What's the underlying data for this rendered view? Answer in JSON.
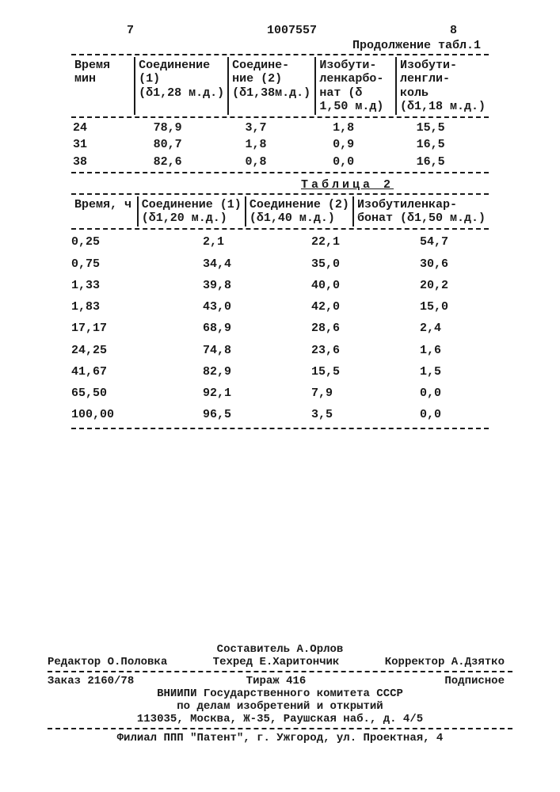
{
  "header": {
    "left_page": "7",
    "doc_number": "1007557",
    "right_page": "8",
    "continuation": "Продолжение табл.1"
  },
  "table1": {
    "columns": {
      "c1": "Время\nмин",
      "c2": "Соединение\n(1)\n(δ1,28 м.д.)",
      "c3": "Соедине-\nние (2)\n(δ1,38м.д.)",
      "c4": "Изобути-\nленкарбо-\nнат (δ\n1,50 м.д)",
      "c5": "Изобути-\nленгли-\nколь\n(δ1,18 м.д.)"
    },
    "rows": [
      [
        "24",
        "78,9",
        "3,7",
        "1,8",
        "15,5"
      ],
      [
        "31",
        "80,7",
        "1,8",
        "0,9",
        "16,5"
      ],
      [
        "38",
        "82,6",
        "0,8",
        "0,0",
        "16,5"
      ]
    ]
  },
  "table2": {
    "title": "Таблица 2",
    "columns": {
      "c1": "Время, ч",
      "c2": "Соединение (1)\n(δ1,20 м.д.)",
      "c3": "Соединение (2)\n(δ1,40 м.д.)",
      "c4": "Изобутиленкар-\nбонат (δ1,50 м.д.)"
    },
    "rows": [
      [
        "0,25",
        "2,1",
        "22,1",
        "54,7"
      ],
      [
        "0,75",
        "34,4",
        "35,0",
        "30,6"
      ],
      [
        "1,33",
        "39,8",
        "40,0",
        "20,2"
      ],
      [
        "1,83",
        "43,0",
        "42,0",
        "15,0"
      ],
      [
        "17,17",
        "68,9",
        "28,6",
        "2,4"
      ],
      [
        "24,25",
        "74,8",
        "23,6",
        "1,6"
      ],
      [
        "41,67",
        "82,9",
        "15,5",
        "1,5"
      ],
      [
        "65,50",
        "92,1",
        "7,9",
        "0,0"
      ],
      [
        "100,00",
        "96,5",
        "3,5",
        "0,0"
      ]
    ]
  },
  "footer": {
    "composer": "Составитель А.Орлов",
    "editor": "Редактор О.Половка",
    "tech": "Техред Е.Харитончик",
    "corrector": "Корректор А.Дзятко",
    "order": "Заказ 2160/78",
    "tirazh": "Тираж 416",
    "sign": "Подписное",
    "org1": "ВНИИПИ Государственного комитета СССР",
    "org2": "по делам изобретений и открытий",
    "addr1": "113035, Москва, Ж-35, Раушская наб., д. 4/5",
    "addr2": "Филиал ППП \"Патент\", г. Ужгород, ул. Проектная, 4"
  }
}
